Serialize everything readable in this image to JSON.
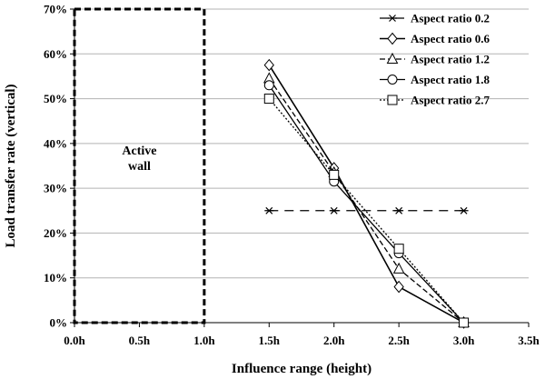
{
  "chart_data": {
    "type": "line",
    "xlabel": "Influence range (height)",
    "ylabel": "Load transfer rate (vertical)",
    "xlim": [
      0,
      3.5
    ],
    "ylim": [
      0,
      70
    ],
    "x_ticks": [
      {
        "value": 0.0,
        "label": "0.0h"
      },
      {
        "value": 0.5,
        "label": "0.5h"
      },
      {
        "value": 1.0,
        "label": "1.0h"
      },
      {
        "value": 1.5,
        "label": "1.5h"
      },
      {
        "value": 2.0,
        "label": "2.0h"
      },
      {
        "value": 2.5,
        "label": "2.5h"
      },
      {
        "value": 3.0,
        "label": "3.0h"
      },
      {
        "value": 3.5,
        "label": "3.5h"
      }
    ],
    "y_ticks": [
      {
        "value": 0,
        "label": "0%"
      },
      {
        "value": 10,
        "label": "10%"
      },
      {
        "value": 20,
        "label": "20%"
      },
      {
        "value": 30,
        "label": "30%"
      },
      {
        "value": 40,
        "label": "40%"
      },
      {
        "value": 50,
        "label": "50%"
      },
      {
        "value": 60,
        "label": "60%"
      },
      {
        "value": 70,
        "label": "70%"
      }
    ],
    "grid": "horizontal",
    "legend_position": "top-right",
    "annotation": {
      "text_lines": [
        "Active",
        "wall"
      ],
      "region_x": [
        0,
        1.0
      ]
    },
    "series": [
      {
        "name": "Aspect ratio 0.2",
        "marker": "asterisk",
        "dash": "10,7",
        "stroke_width": 1.3,
        "x": [
          1.5,
          2.0,
          2.5,
          3.0
        ],
        "y": [
          25,
          25,
          25,
          25
        ]
      },
      {
        "name": "Aspect ratio 0.6",
        "marker": "diamond",
        "dash": "",
        "stroke_width": 1.6,
        "x": [
          1.5,
          2.0,
          2.5,
          3.0
        ],
        "y": [
          57.5,
          34.5,
          8,
          0
        ]
      },
      {
        "name": "Aspect ratio 1.2",
        "marker": "triangle",
        "dash": "6,3",
        "stroke_width": 1.3,
        "x": [
          1.5,
          2.0,
          2.5,
          3.0
        ],
        "y": [
          54.5,
          33.5,
          12,
          0
        ]
      },
      {
        "name": "Aspect ratio 1.8",
        "marker": "circle",
        "dash": "",
        "stroke_width": 1.3,
        "x": [
          1.5,
          2.0,
          2.5,
          3.0
        ],
        "y": [
          53,
          31.5,
          15.5,
          0
        ]
      },
      {
        "name": "Aspect ratio 2.7",
        "marker": "square",
        "dash": "2,2",
        "stroke_width": 1.3,
        "x": [
          1.5,
          2.0,
          2.5,
          3.0
        ],
        "y": [
          50,
          33,
          16.5,
          0
        ]
      }
    ]
  }
}
